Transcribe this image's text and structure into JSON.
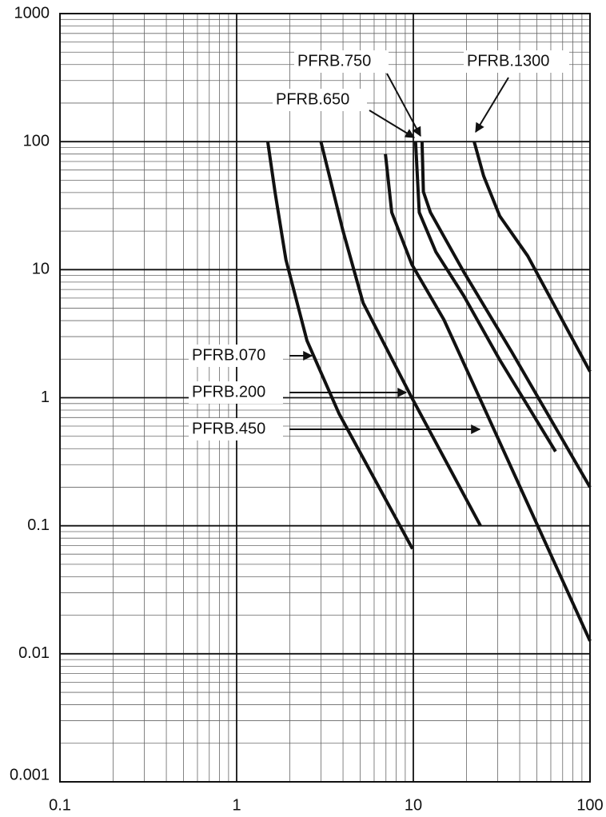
{
  "chart_data": {
    "type": "line",
    "log_x": true,
    "log_y": true,
    "grid": true,
    "xlim": [
      0.1,
      100
    ],
    "ylim": [
      0.001,
      1000
    ],
    "xticks": [
      0.1,
      1,
      10,
      100
    ],
    "yticks": [
      0.001,
      0.01,
      0.1,
      1,
      10,
      100,
      1000
    ],
    "series": [
      {
        "name": "PFRB.070",
        "color": "#111111",
        "x": [
          1.5,
          1.65,
          1.9,
          2.5,
          3.8,
          9.9
        ],
        "values": [
          100,
          40,
          12,
          2.8,
          0.75,
          0.066
        ]
      },
      {
        "name": "PFRB.200",
        "color": "#111111",
        "x": [
          3,
          4,
          5.2,
          9.8,
          24
        ],
        "values": [
          100,
          20,
          5.5,
          1,
          0.1
        ]
      },
      {
        "name": "PFRB.450",
        "color": "#111111",
        "x": [
          6.95,
          7.55,
          9.8,
          14.9,
          26.4,
          100
        ],
        "values": [
          80,
          28,
          11,
          4.06,
          0.72,
          0.0126
        ]
      },
      {
        "name": "PFRB.650",
        "color": "#111111",
        "x": [
          10.3,
          10.8,
          13.4,
          19.3,
          30.8,
          63.8
        ],
        "values": [
          100,
          28,
          13.8,
          6.25,
          1.98,
          0.38
        ]
      },
      {
        "name": "PFRB.750",
        "color": "#111111",
        "x": [
          11.2,
          11.4,
          12.5,
          19.3,
          36,
          100
        ],
        "values": [
          100,
          40.6,
          28,
          9.6,
          2.29,
          0.2
        ]
      },
      {
        "name": "PFRB.1300",
        "color": "#111111",
        "x": [
          22.1,
          25,
          30.8,
          44.4,
          100
        ],
        "values": [
          100,
          54,
          26.3,
          12.8,
          1.6
        ]
      }
    ]
  }
}
